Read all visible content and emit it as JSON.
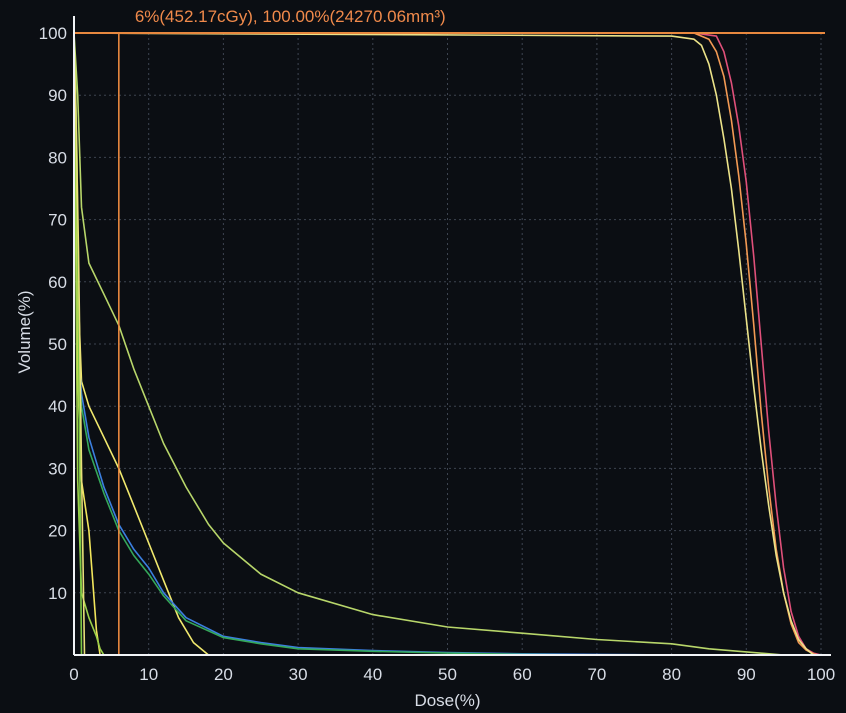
{
  "chart_data": {
    "type": "line",
    "title": "",
    "xlabel": "Dose(%)",
    "ylabel": "Volume(%)",
    "xlim": [
      0,
      100
    ],
    "ylim": [
      0,
      100
    ],
    "xticks": [
      0,
      10,
      20,
      30,
      40,
      50,
      60,
      70,
      80,
      90,
      100
    ],
    "yticks": [
      10,
      20,
      30,
      40,
      50,
      60,
      70,
      80,
      90,
      100
    ],
    "grid": true,
    "legend": "none",
    "cursor": {
      "label": "6%(452.17cGy), 100.00%(24270.06mm³)",
      "x": 6,
      "y": 100,
      "color": "#e8883f"
    },
    "series": [
      {
        "color": "#e0507a",
        "x": [
          0,
          83,
          86,
          87,
          88,
          89,
          90,
          91,
          92,
          93,
          94,
          95,
          96,
          97,
          98,
          99,
          100
        ],
        "y": [
          100,
          100,
          99.5,
          97,
          92,
          85,
          76,
          64,
          50,
          36,
          24,
          14,
          7,
          3,
          1,
          0.3,
          0
        ]
      },
      {
        "color": "#f39a54",
        "x": [
          0,
          83,
          85,
          86,
          87,
          88,
          89,
          90,
          91,
          92,
          93,
          94,
          95,
          96,
          97,
          98,
          99,
          99.5
        ],
        "y": [
          100,
          100,
          99,
          97,
          93,
          86,
          77,
          66,
          53,
          39,
          27,
          17,
          10,
          5,
          2,
          0.8,
          0.2,
          0
        ]
      },
      {
        "color": "#ece389",
        "x": [
          0,
          80,
          83,
          84,
          85,
          86,
          87,
          88,
          89,
          90,
          91,
          92,
          93,
          94,
          95,
          96,
          97,
          98,
          99
        ],
        "y": [
          100,
          99.5,
          99,
          98,
          95,
          90,
          83,
          75,
          65,
          54,
          43,
          33,
          24,
          16,
          10,
          5.5,
          2.5,
          1,
          0
        ]
      },
      {
        "color": "#b8d66a",
        "x": [
          0,
          0.5,
          1,
          2,
          4,
          6,
          8,
          10,
          12,
          15,
          18,
          20,
          25,
          30,
          40,
          50,
          60,
          70,
          80,
          85,
          90,
          95
        ],
        "y": [
          100,
          90,
          72,
          63,
          58,
          53,
          46,
          40,
          34,
          27,
          21,
          18,
          13,
          10,
          6.5,
          4.5,
          3.5,
          2.5,
          1.8,
          1,
          0.5,
          0
        ]
      },
      {
        "color": "#f1e96e",
        "x": [
          0,
          0.5,
          1,
          2,
          4,
          6,
          8,
          10,
          12,
          14,
          16,
          18
        ],
        "y": [
          100,
          60,
          44,
          40,
          35,
          30,
          24,
          18,
          12,
          6,
          2,
          0
        ]
      },
      {
        "color": "#3b7fe0",
        "x": [
          0,
          0.5,
          1,
          2,
          4,
          6,
          8,
          10,
          12,
          15,
          20,
          25,
          30,
          40,
          50,
          60,
          70,
          80
        ],
        "y": [
          100,
          50,
          42,
          35,
          27,
          21,
          17,
          14,
          10,
          6,
          3,
          2,
          1.2,
          0.7,
          0.4,
          0.2,
          0.1,
          0
        ]
      },
      {
        "color": "#35a85a",
        "x": [
          0,
          0.5,
          1,
          2,
          4,
          6,
          8,
          10,
          12,
          15,
          20,
          25,
          30,
          40,
          50,
          60,
          70
        ],
        "y": [
          100,
          48,
          40,
          33,
          26,
          20,
          16,
          13,
          9.5,
          5.5,
          2.8,
          1.8,
          1,
          0.6,
          0.3,
          0.1,
          0
        ]
      },
      {
        "color": "#f2e65c",
        "x": [
          0,
          0.5,
          1,
          2,
          2.5,
          3,
          3.5
        ],
        "y": [
          100,
          45,
          28,
          20,
          12,
          4,
          0
        ]
      },
      {
        "color": "#9bd04a",
        "x": [
          0,
          0.5,
          1,
          2,
          3,
          3.5,
          4
        ],
        "y": [
          100,
          28,
          10,
          6,
          3,
          1,
          0
        ]
      },
      {
        "color": "#7ec845",
        "x": [
          0,
          0.2,
          0.4,
          0.7,
          1
        ],
        "y": [
          100,
          92,
          80,
          40,
          0
        ]
      },
      {
        "color": "#e8e07a",
        "x": [
          0,
          0.3,
          0.6,
          1,
          1.4
        ],
        "y": [
          100,
          85,
          65,
          30,
          0
        ]
      }
    ]
  }
}
